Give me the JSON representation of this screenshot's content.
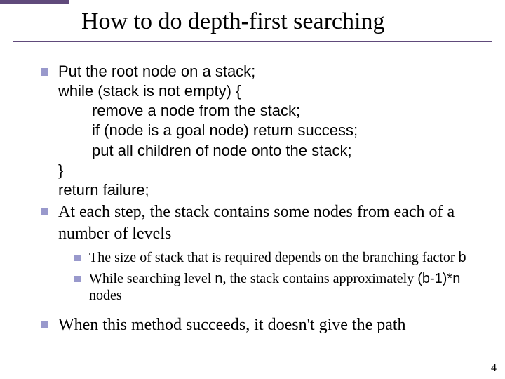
{
  "accent_color": "#604a7b",
  "bullet_color": "#9999cc",
  "background_color": "#ffffff",
  "title": "How to do depth-first searching",
  "page_number": "4",
  "items": [
    {
      "lines": [
        "Put the root node on a stack;",
        "while (stack is not empty) {",
        "    remove a node from the stack;",
        "    if (node is a goal node) return success;",
        "    put all children of node onto the stack;",
        "}",
        "return failure;"
      ]
    },
    {
      "text": "At each step, the stack contains some nodes from each of a number of levels"
    }
  ],
  "subitems": [
    {
      "prefix": "The size of stack that is required depends on the branching factor ",
      "code": "b",
      "suffix": ""
    },
    {
      "prefix": "While searching level ",
      "code1": "n",
      "mid": ", the stack contains approximately ",
      "code2": "(b-1)*n",
      "suffix": " nodes"
    }
  ],
  "final": "When this method succeeds, it doesn't give the path"
}
